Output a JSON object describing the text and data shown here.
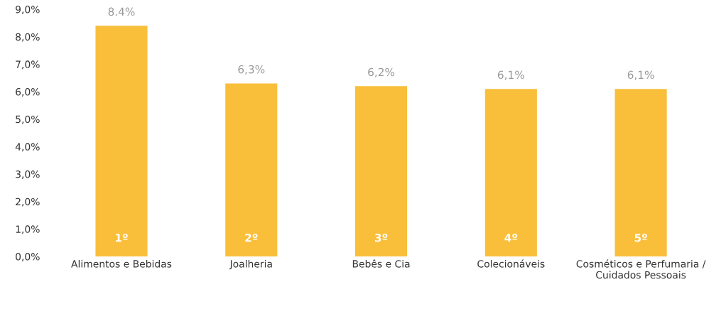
{
  "chart_data": {
    "type": "bar",
    "categories": [
      "Alimentos e Bebidas",
      "Joalheria",
      "Bebês e Cia",
      "Colecionáveis",
      "Cosméticos e Perfumaria /\nCuidados Pessoais"
    ],
    "values": [
      8.4,
      6.3,
      6.2,
      6.1,
      6.1
    ],
    "value_labels": [
      "8.4%",
      "6,3%",
      "6,2%",
      "6,1%",
      "6,1%"
    ],
    "color": "#f9bf3b",
    "ylim": [
      0,
      9
    ],
    "yticks": [
      {
        "value": 0,
        "label": "0,0%"
      },
      {
        "value": 1,
        "label": "1,0%"
      },
      {
        "value": 2,
        "label": "2,0%"
      },
      {
        "value": 3,
        "label": "3,0%"
      },
      {
        "value": 4,
        "label": "4,0%"
      },
      {
        "value": 5,
        "label": "5,0%"
      },
      {
        "value": 6,
        "label": "6,0%"
      },
      {
        "value": 7,
        "label": "7,0%"
      },
      {
        "value": 8,
        "label": "8,0%"
      },
      {
        "value": 9,
        "label": "9,0%"
      }
    ],
    "annotations": [
      "1º",
      "2º",
      "3º",
      "4º",
      "5º"
    ],
    "grid": false,
    "legend": false
  }
}
